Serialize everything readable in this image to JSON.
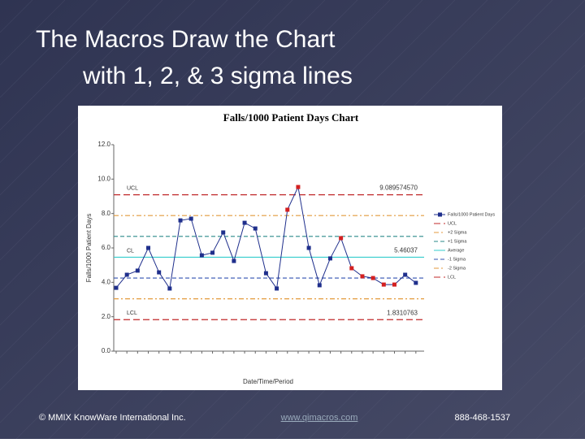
{
  "slide_title": [
    "The Macros Draw the Chart",
    "with 1, 2, & 3 sigma lines"
  ],
  "footer": {
    "left": "© MMIX KnowWare International Inc.",
    "center": "www.qimacros.com",
    "right": "888-468-1537"
  },
  "chart_data": {
    "type": "line",
    "title": "Falls/1000 Patient Days Chart",
    "x_label": "Date/Time/Period",
    "y_label": "Falls/1000 Patient Days",
    "categories": [
      null,
      null,
      null,
      null,
      null,
      null,
      null,
      null,
      null,
      null,
      null,
      null,
      null,
      null,
      null,
      null,
      null,
      null,
      null,
      null,
      null,
      null,
      null,
      null,
      null,
      null,
      null,
      null,
      null
    ],
    "series": [
      {
        "name": "Falls/1000 Patient Days",
        "color": "#1f2f8c",
        "values": [
          3.68,
          4.44,
          4.68,
          6.0,
          4.58,
          3.64,
          7.6,
          7.7,
          5.57,
          5.72,
          6.9,
          5.24,
          7.46,
          7.13,
          4.53,
          3.64,
          8.22,
          9.54,
          6.0,
          3.83,
          5.39,
          6.57,
          4.82,
          4.35,
          4.25,
          3.87,
          3.87,
          4.44,
          3.97
        ],
        "point_colors": [
          "#1f2f8c",
          "#1f2f8c",
          "#1f2f8c",
          "#1f2f8c",
          "#1f2f8c",
          "#1f2f8c",
          "#1f2f8c",
          "#1f2f8c",
          "#1f2f8c",
          "#1f2f8c",
          "#1f2f8c",
          "#1f2f8c",
          "#1f2f8c",
          "#1f2f8c",
          "#1f2f8c",
          "#1f2f8c",
          "#d42020",
          "#d42020",
          "#1f2f8c",
          "#1f2f8c",
          "#1f2f8c",
          "#d42020",
          "#d42020",
          "#d42020",
          "#d42020",
          "#d42020",
          "#d42020",
          "#1f2f8c",
          "#1f2f8c"
        ]
      }
    ],
    "lines": [
      {
        "name": "UCL",
        "value": 9.08957457,
        "value_label": "9.089574570",
        "tag": "UCL",
        "color": "#c0282a",
        "dash": "8 4"
      },
      {
        "name": "+2 Sigma",
        "value": 7.88,
        "color": "#e39a3c",
        "dash": "6 3 2 3"
      },
      {
        "name": "+1 Sigma",
        "value": 6.67,
        "color": "#2a8a8a",
        "dash": "5 3"
      },
      {
        "name": "Average",
        "value": 5.46037,
        "value_label": "5.46037",
        "tag": "CL",
        "color": "#33cccc",
        "dash": ""
      },
      {
        "name": "-1 Sigma",
        "value": 4.25,
        "color": "#3050b0",
        "dash": "5 3"
      },
      {
        "name": "-2 Sigma",
        "value": 3.04,
        "color": "#e39a3c",
        "dash": "6 3 2 3"
      },
      {
        "name": "LCL",
        "value": 1.8310763,
        "value_label": "1.8310763",
        "tag": "LCL",
        "color": "#c0282a",
        "dash": "8 4"
      }
    ],
    "ylim": [
      0,
      12
    ],
    "yticks": [
      {
        "value": 0,
        "label": "0.0"
      },
      {
        "value": 2,
        "label": "2.0"
      },
      {
        "value": 4,
        "label": "4.0"
      },
      {
        "value": 6,
        "label": "6.0"
      },
      {
        "value": 8,
        "label": "8.0"
      },
      {
        "value": 10,
        "label": "10.0"
      },
      {
        "value": 12,
        "label": "12.0"
      }
    ]
  }
}
